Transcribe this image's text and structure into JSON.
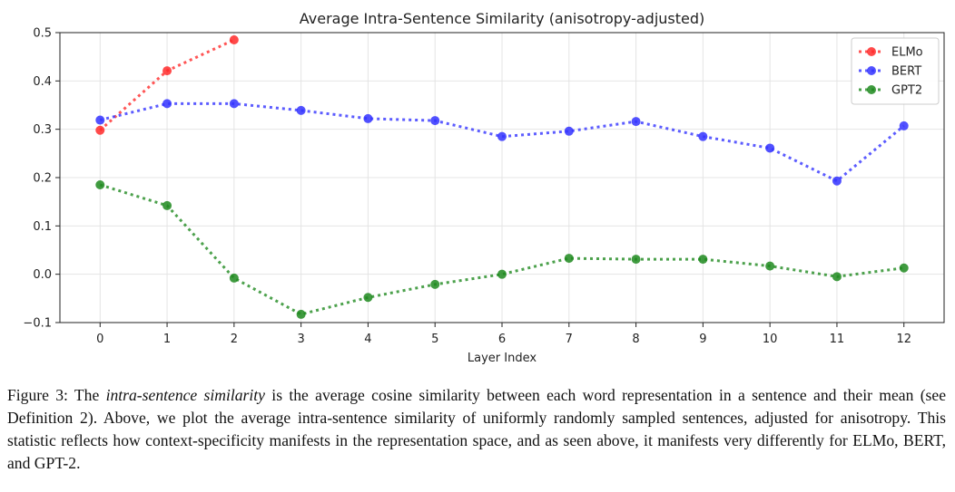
{
  "chart_data": {
    "type": "line",
    "title": "Average Intra-Sentence Similarity (anisotropy-adjusted)",
    "xlabel": "Layer Index",
    "ylabel": "",
    "xlim": [
      -0.6,
      12.6
    ],
    "ylim": [
      -0.1,
      0.5
    ],
    "xticks": [
      0,
      1,
      2,
      3,
      4,
      5,
      6,
      7,
      8,
      9,
      10,
      11,
      12
    ],
    "yticks": [
      -0.1,
      0.0,
      0.1,
      0.2,
      0.3,
      0.4,
      0.5
    ],
    "ytick_labels": [
      "−0.1",
      "0.0",
      "0.1",
      "0.2",
      "0.3",
      "0.4",
      "0.5"
    ],
    "grid": true,
    "legend_position": "top-right",
    "series": [
      {
        "name": "ELMo",
        "color": "#ff2a2a",
        "x": [
          0,
          1,
          2
        ],
        "y": [
          0.298,
          0.421,
          0.485
        ]
      },
      {
        "name": "BERT",
        "color": "#3333ff",
        "x": [
          0,
          1,
          2,
          3,
          4,
          5,
          6,
          7,
          8,
          9,
          10,
          11,
          12
        ],
        "y": [
          0.319,
          0.353,
          0.353,
          0.339,
          0.322,
          0.318,
          0.285,
          0.296,
          0.316,
          0.285,
          0.261,
          0.193,
          0.307
        ]
      },
      {
        "name": "GPT2",
        "color": "#1f8a1f",
        "x": [
          0,
          1,
          2,
          3,
          4,
          5,
          6,
          7,
          8,
          9,
          10,
          11,
          12
        ],
        "y": [
          0.185,
          0.142,
          -0.008,
          -0.083,
          -0.048,
          -0.021,
          0.0,
          0.033,
          0.031,
          0.031,
          0.017,
          -0.005,
          0.013
        ]
      }
    ]
  },
  "caption": {
    "label": "Figure 3: The ",
    "emphasis": "intra-sentence similarity",
    "text": " is the average cosine similarity between each word representation in a sentence and their mean (see Definition 2). Above, we plot the average intra-sentence similarity of uniformly randomly sampled sentences, adjusted for anisotropy. This statistic reflects how context-specificity manifests in the representation space, and as seen above, it manifests very differently for ELMo, BERT, and GPT-2."
  }
}
